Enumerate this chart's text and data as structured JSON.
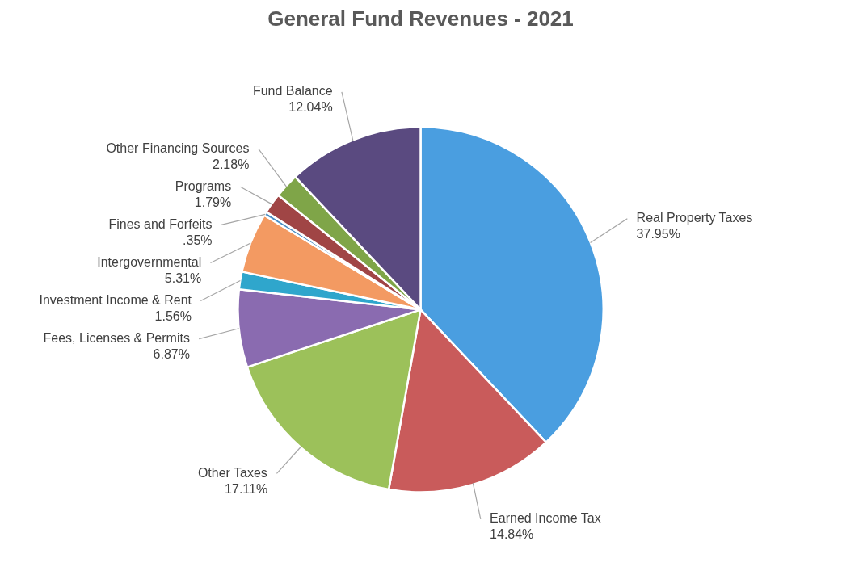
{
  "chart_data": {
    "type": "pie",
    "title": "General Fund Revenues - 2021",
    "categories": [
      "Real Property Taxes",
      "Earned Income Tax",
      "Other Taxes",
      "Fees, Licenses & Permits",
      "Investment Income & Rent",
      "Intergovernmental",
      "Fines and Forfeits",
      "Programs",
      "Other Financing Sources",
      "Fund Balance"
    ],
    "values": [
      37.95,
      14.84,
      17.11,
      6.87,
      1.56,
      5.31,
      0.35,
      1.79,
      2.18,
      12.04
    ],
    "value_labels": [
      "37.95%",
      "14.84%",
      "17.11%",
      "6.87%",
      "1.56%",
      "5.31%",
      ".35%",
      "1.79%",
      "2.18%",
      "12.04%"
    ],
    "colors": [
      "#4a9ee0",
      "#c95b5b",
      "#9cc15a",
      "#8a6bb0",
      "#2fa6cc",
      "#f39a62",
      "#4a8fc4",
      "#a04545",
      "#7fa548",
      "#5a4a80"
    ]
  }
}
